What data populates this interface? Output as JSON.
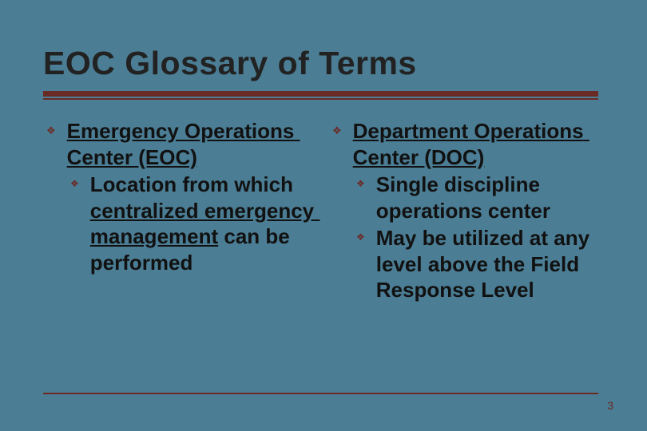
{
  "colors": {
    "background": "#4b7d94",
    "accent": "#6a2b25",
    "text": "#111111"
  },
  "title": "EOC Glossary of Terms",
  "page_number": "3",
  "left": {
    "term_parts": [
      {
        "t": "Emergency Operations Center (EOC)",
        "u": true
      }
    ],
    "subs": [
      {
        "parts": [
          {
            "t": "Location from which ",
            "u": false
          },
          {
            "t": "centralized emergency management",
            "u": true
          },
          {
            "t": " can be performed",
            "u": false
          }
        ]
      }
    ]
  },
  "right": {
    "term_parts": [
      {
        "t": "Department Operations Center (DOC)",
        "u": true
      }
    ],
    "subs": [
      {
        "parts": [
          {
            "t": "Single discipline operations center",
            "u": false
          }
        ]
      },
      {
        "parts": [
          {
            "t": "May be utilized at any level above the Field Response Level",
            "u": false
          }
        ]
      }
    ]
  }
}
